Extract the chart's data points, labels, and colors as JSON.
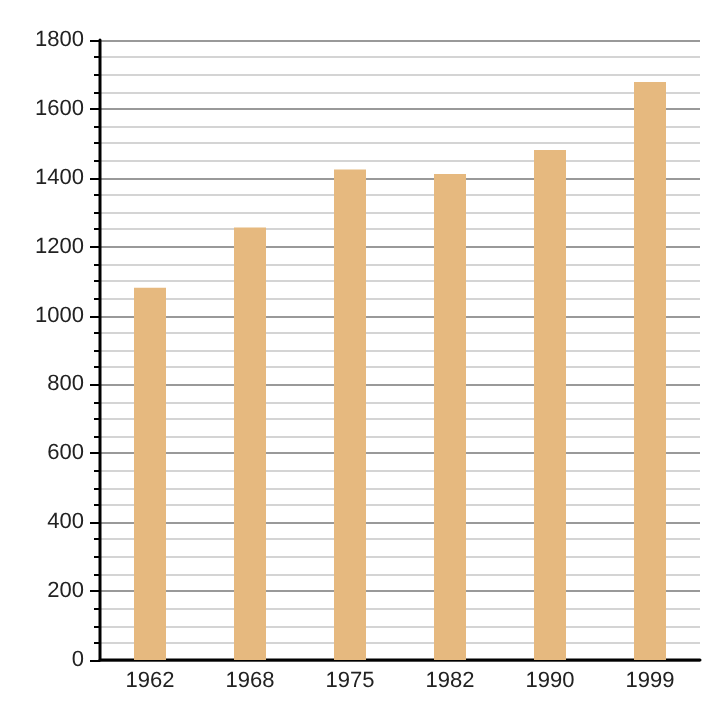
{
  "chart_data": {
    "type": "bar",
    "categories": [
      "1962",
      "1968",
      "1975",
      "1982",
      "1990",
      "1999"
    ],
    "values": [
      1081,
      1256,
      1424,
      1411,
      1481,
      1678
    ],
    "color": "#e6b97f",
    "ylim": [
      0,
      1800
    ],
    "yticks": [
      0,
      200,
      400,
      600,
      800,
      1000,
      1200,
      1400,
      1600,
      1800
    ],
    "grid": "y"
  }
}
